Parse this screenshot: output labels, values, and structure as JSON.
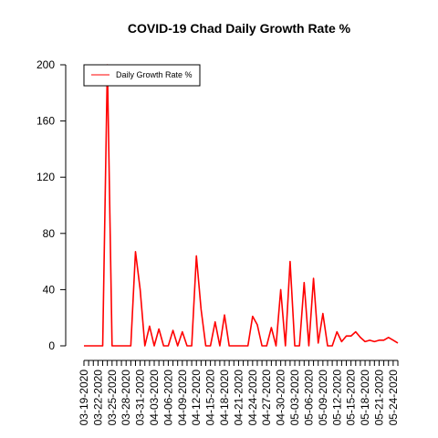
{
  "chart_data": {
    "type": "line",
    "title": "COVID-19 Chad Daily Growth Rate %",
    "xlabel": "",
    "ylabel": "",
    "ylim": [
      0,
      200
    ],
    "yticks": [
      0,
      40,
      80,
      120,
      160,
      200
    ],
    "grid": false,
    "legend_position": "top-left",
    "x_tick_labels": [
      "03-19-2020",
      "03-22-2020",
      "03-25-2020",
      "03-28-2020",
      "03-31-2020",
      "04-03-2020",
      "04-06-2020",
      "04-09-2020",
      "04-12-2020",
      "04-15-2020",
      "04-18-2020",
      "04-21-2020",
      "04-24-2020",
      "04-27-2020",
      "04-30-2020",
      "05-03-2020",
      "05-06-2020",
      "05-09-2020",
      "05-12-2020",
      "05-15-2020",
      "05-18-2020",
      "05-21-2020",
      "05-24-2020"
    ],
    "series": [
      {
        "name": "Daily Growth Rate %",
        "color": "#ff0000",
        "x_start": "03-19-2020",
        "x_end": "05-26-2020",
        "values": [
          0,
          0,
          0,
          0,
          0,
          200,
          0,
          0,
          0,
          0,
          0,
          67,
          40,
          0,
          14,
          0,
          12,
          0,
          0,
          11,
          0,
          10,
          0,
          0,
          64,
          26,
          0,
          0,
          17,
          0,
          22,
          0,
          0,
          0,
          0,
          0,
          21,
          15,
          0,
          0,
          13,
          0,
          40,
          0,
          60,
          0,
          0,
          45,
          0,
          48,
          2,
          23,
          0,
          0,
          10,
          3,
          7,
          7,
          10,
          6,
          3,
          4,
          3,
          4,
          4,
          6,
          4,
          2
        ]
      }
    ]
  }
}
